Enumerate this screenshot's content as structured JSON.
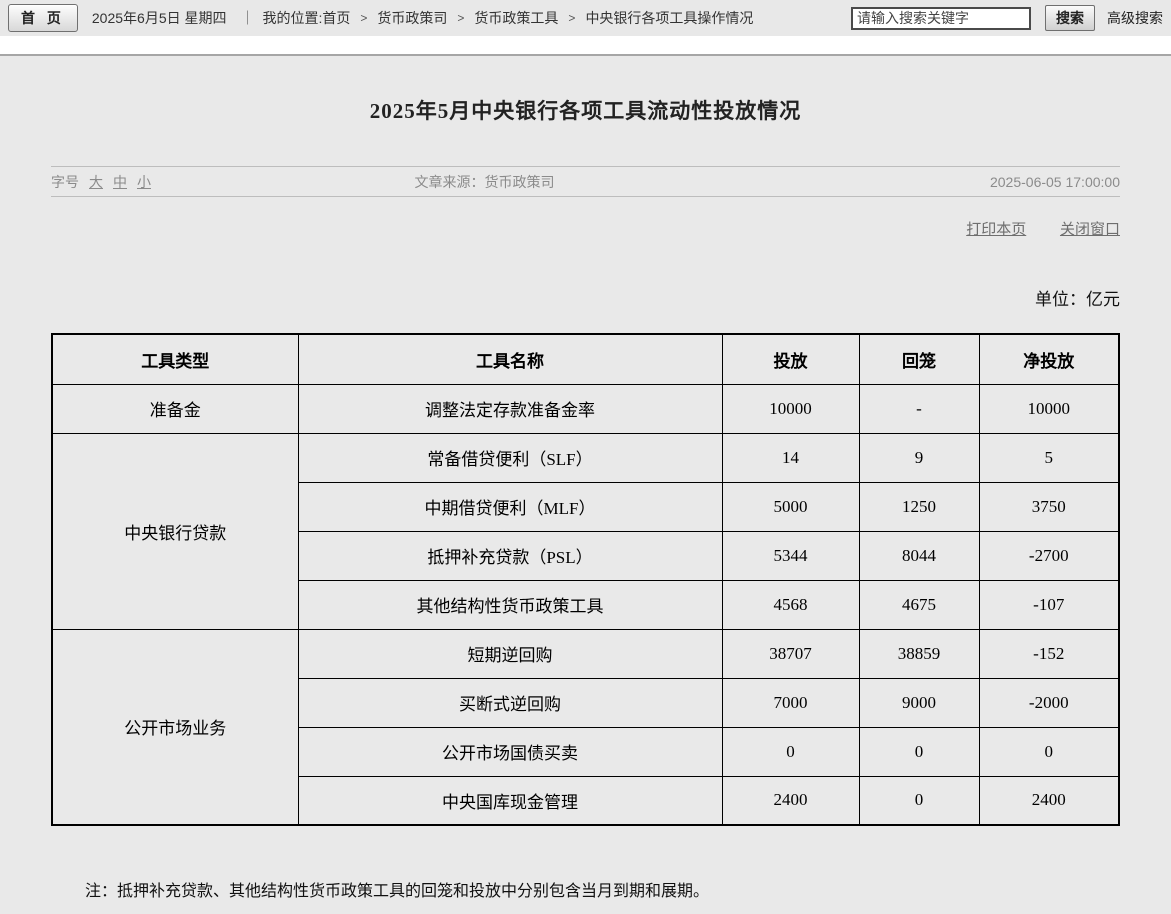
{
  "topbar": {
    "home_button": "首 页",
    "date": "2025年6月5日 星期四",
    "pipe_separator": "｜",
    "location_label": "我的位置:",
    "breadcrumb": [
      "首页",
      "货币政策司",
      "货币政策工具"
    ],
    "breadcrumb_current": "中央银行各项工具操作情况",
    "breadcrumb_separator": ">",
    "search": {
      "placeholder": "请输入搜索关键字",
      "button_label": "搜索",
      "advanced_label": "高级搜索"
    }
  },
  "article": {
    "title": "2025年5月中央银行各项工具流动性投放情况",
    "font_size_label": "字号",
    "font_sizes": [
      "大",
      "中",
      "小"
    ],
    "source": "文章来源：货币政策司",
    "datetime": "2025-06-05 17:00:00",
    "print_label": "打印本页",
    "close_label": "关闭窗口",
    "unit_label": "单位：亿元",
    "note": "注：抵押补充贷款、其他结构性货币政策工具的回笼和投放中分别包含当月到期和展期。"
  },
  "chart_data": {
    "type": "table",
    "title": "2025年5月中央银行各项工具流动性投放情况",
    "unit": "亿元",
    "columns": [
      "工具类型",
      "工具名称",
      "投放",
      "回笼",
      "净投放"
    ],
    "groups": [
      {
        "name": "准备金",
        "rows": [
          [
            "调整法定存款准备金率",
            "10000",
            "-",
            "10000"
          ]
        ]
      },
      {
        "name": "中央银行贷款",
        "rows": [
          [
            "常备借贷便利（SLF）",
            "14",
            "9",
            "5"
          ],
          [
            "中期借贷便利（MLF）",
            "5000",
            "1250",
            "3750"
          ],
          [
            "抵押补充贷款（PSL）",
            "5344",
            "8044",
            "-2700"
          ],
          [
            "其他结构性货币政策工具",
            "4568",
            "4675",
            "-107"
          ]
        ]
      },
      {
        "name": "公开市场业务",
        "rows": [
          [
            "短期逆回购",
            "38707",
            "38859",
            "-152"
          ],
          [
            "买断式逆回购",
            "7000",
            "9000",
            "-2000"
          ],
          [
            "公开市场国债买卖",
            "0",
            "0",
            "0"
          ],
          [
            "中央国库现金管理",
            "2400",
            "0",
            "2400"
          ]
        ]
      }
    ]
  }
}
